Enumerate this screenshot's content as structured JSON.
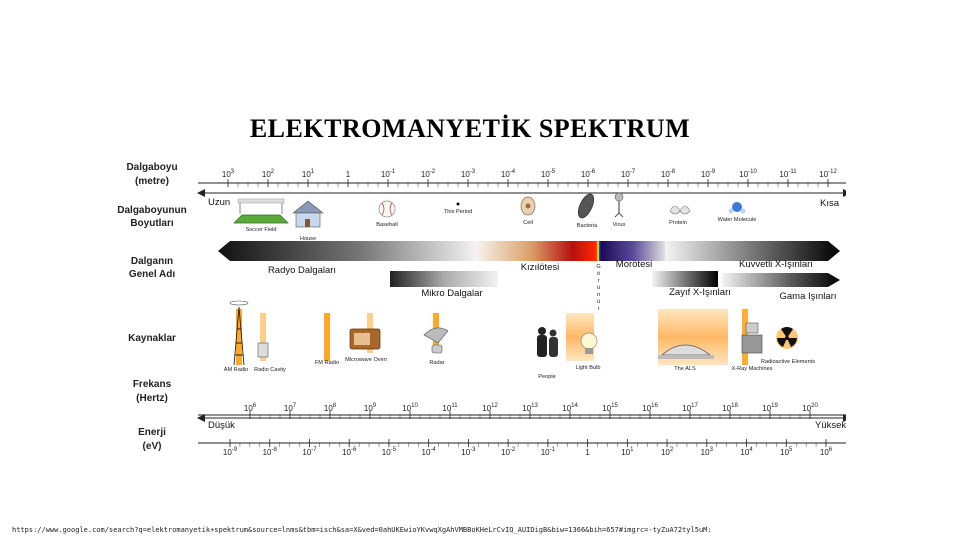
{
  "title": "ELEKTROMANYETİK  SPEKTRUM",
  "row_labels": {
    "wavelength": [
      "Dalgaboyu",
      "(metre)"
    ],
    "size": [
      "Dalgaboyunun",
      "Boyutları"
    ],
    "name": [
      "Dalganın",
      "Genel Adı"
    ],
    "sources": [
      "Kaynaklar"
    ],
    "frequency": [
      "Frekans",
      "(Hertz)"
    ],
    "energy": [
      "Enerji",
      "(eV)"
    ]
  },
  "wavelength_ticks": [
    {
      "base": "10",
      "exp": "3"
    },
    {
      "base": "10",
      "exp": "2"
    },
    {
      "base": "10",
      "exp": "1"
    },
    {
      "base": "1",
      "exp": ""
    },
    {
      "base": "10",
      "exp": "-1"
    },
    {
      "base": "10",
      "exp": "-2"
    },
    {
      "base": "10",
      "exp": "-3"
    },
    {
      "base": "10",
      "exp": "-4"
    },
    {
      "base": "10",
      "exp": "-5"
    },
    {
      "base": "10",
      "exp": "-6"
    },
    {
      "base": "10",
      "exp": "-7"
    },
    {
      "base": "10",
      "exp": "-8"
    },
    {
      "base": "10",
      "exp": "-9"
    },
    {
      "base": "10",
      "exp": "-10"
    },
    {
      "base": "10",
      "exp": "-11"
    },
    {
      "base": "10",
      "exp": "-12"
    }
  ],
  "wavelength_arrow": {
    "left": "Uzun",
    "right": "Kısa"
  },
  "size_objects": [
    "Soccer Field",
    "House",
    "Baseball",
    "This Period",
    "Cell",
    "Bacteria",
    "Virus",
    "Protein",
    "Water Molecule"
  ],
  "wave_names": {
    "radio": "Radyo Dalgaları",
    "infrared": "Kızılötesi",
    "visible": "Görünür",
    "ultraviolet": "Morötesi",
    "hard_xray": "Kuvvetli  X-Işınları",
    "microwave": "Mikro Dalgalar",
    "soft_xray": "Zayıf  X-Işınları",
    "gamma": "Gama Işınları"
  },
  "sources": [
    "AM Radio",
    "Radio Cavity",
    "FM Radio",
    "Microwave Oven",
    "Radar",
    "People",
    "Light Bulb",
    "The ALS",
    "X-Ray Machines",
    "Radioactive Elements"
  ],
  "frequency_ticks": [
    {
      "base": "10",
      "exp": "6"
    },
    {
      "base": "10",
      "exp": "7"
    },
    {
      "base": "10",
      "exp": "8"
    },
    {
      "base": "10",
      "exp": "9"
    },
    {
      "base": "10",
      "exp": "10"
    },
    {
      "base": "10",
      "exp": "11"
    },
    {
      "base": "10",
      "exp": "12"
    },
    {
      "base": "10",
      "exp": "13"
    },
    {
      "base": "10",
      "exp": "14"
    },
    {
      "base": "10",
      "exp": "15"
    },
    {
      "base": "10",
      "exp": "16"
    },
    {
      "base": "10",
      "exp": "17"
    },
    {
      "base": "10",
      "exp": "18"
    },
    {
      "base": "10",
      "exp": "19"
    },
    {
      "base": "10",
      "exp": "20"
    }
  ],
  "energy_arrow": {
    "left": "Düşük",
    "right": "Yüksek"
  },
  "energy_ticks": [
    {
      "base": "10",
      "exp": "-9"
    },
    {
      "base": "10",
      "exp": "-8"
    },
    {
      "base": "10",
      "exp": "-7"
    },
    {
      "base": "10",
      "exp": "-6"
    },
    {
      "base": "10",
      "exp": "-5"
    },
    {
      "base": "10",
      "exp": "-4"
    },
    {
      "base": "10",
      "exp": "-3"
    },
    {
      "base": "10",
      "exp": "-2"
    },
    {
      "base": "10",
      "exp": "-1"
    },
    {
      "base": "1",
      "exp": ""
    },
    {
      "base": "10",
      "exp": "1"
    },
    {
      "base": "10",
      "exp": "2"
    },
    {
      "base": "10",
      "exp": "3"
    },
    {
      "base": "10",
      "exp": "4"
    },
    {
      "base": "10",
      "exp": "5"
    },
    {
      "base": "10",
      "exp": "6"
    }
  ],
  "source_url": "https://www.google.com/search?q=elektromanyetik+spektrum&source=lnms&tbm=isch&sa=X&ved=0ahUKEwioYKvwqXgAhVMBBoKHeLrCvIQ_AUIDigB&biw=1366&bih=657#imgrc=-tyZuA72tyl5uM:"
}
